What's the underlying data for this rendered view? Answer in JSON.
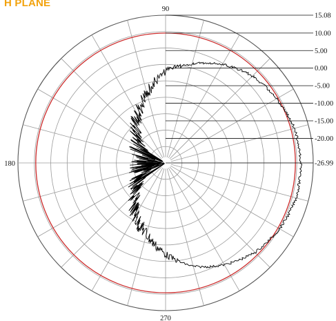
{
  "title": "H PLANE",
  "title_color": "#f2a20c",
  "reference_color": "#cc2a2a",
  "trace_color": "#000000",
  "grid_color": "#9a9a9a",
  "chart_data": {
    "type": "polar-line",
    "title": "H PLANE",
    "radial_unit": "dB",
    "radial_range": [
      -26.99,
      15.08
    ],
    "radial_ticks": [
      "15.08",
      "10.00",
      "5.00",
      "0.00",
      "-5.00",
      "-10.00",
      "-15.00",
      "-20.00",
      "-26.99"
    ],
    "radial_tick_values": [
      15.08,
      10.0,
      5.0,
      0.0,
      -5.0,
      -10.0,
      -15.0,
      -20.0,
      -26.99
    ],
    "angle_labels": [
      {
        "angle": 90,
        "text": "90"
      },
      {
        "angle": 180,
        "text": "180"
      },
      {
        "angle": 270,
        "text": "270"
      }
    ],
    "angular_grid_step_deg": 15,
    "reference_circle_db": 10.0,
    "grid": true,
    "pattern": {
      "angles_deg": [
        0,
        15,
        30,
        45,
        60,
        75,
        90,
        105,
        115,
        125,
        135,
        145,
        155,
        165,
        172,
        180,
        188,
        195,
        205,
        215,
        225,
        235,
        245,
        255,
        270,
        285,
        300,
        315,
        330,
        345,
        360
      ],
      "gain_db": [
        11.5,
        11.0,
        9.5,
        8.0,
        5.5,
        2.2,
        -1.0,
        -6.5,
        -9.5,
        -12.5,
        -15.5,
        -18.0,
        -19.5,
        -20.5,
        -21.5,
        -20.0,
        -21.0,
        -20.5,
        -19.0,
        -17.5,
        -14.5,
        -11.5,
        -8.5,
        -6.0,
        -1.0,
        3.5,
        6.5,
        9.0,
        10.5,
        11.5,
        11.5
      ]
    }
  }
}
